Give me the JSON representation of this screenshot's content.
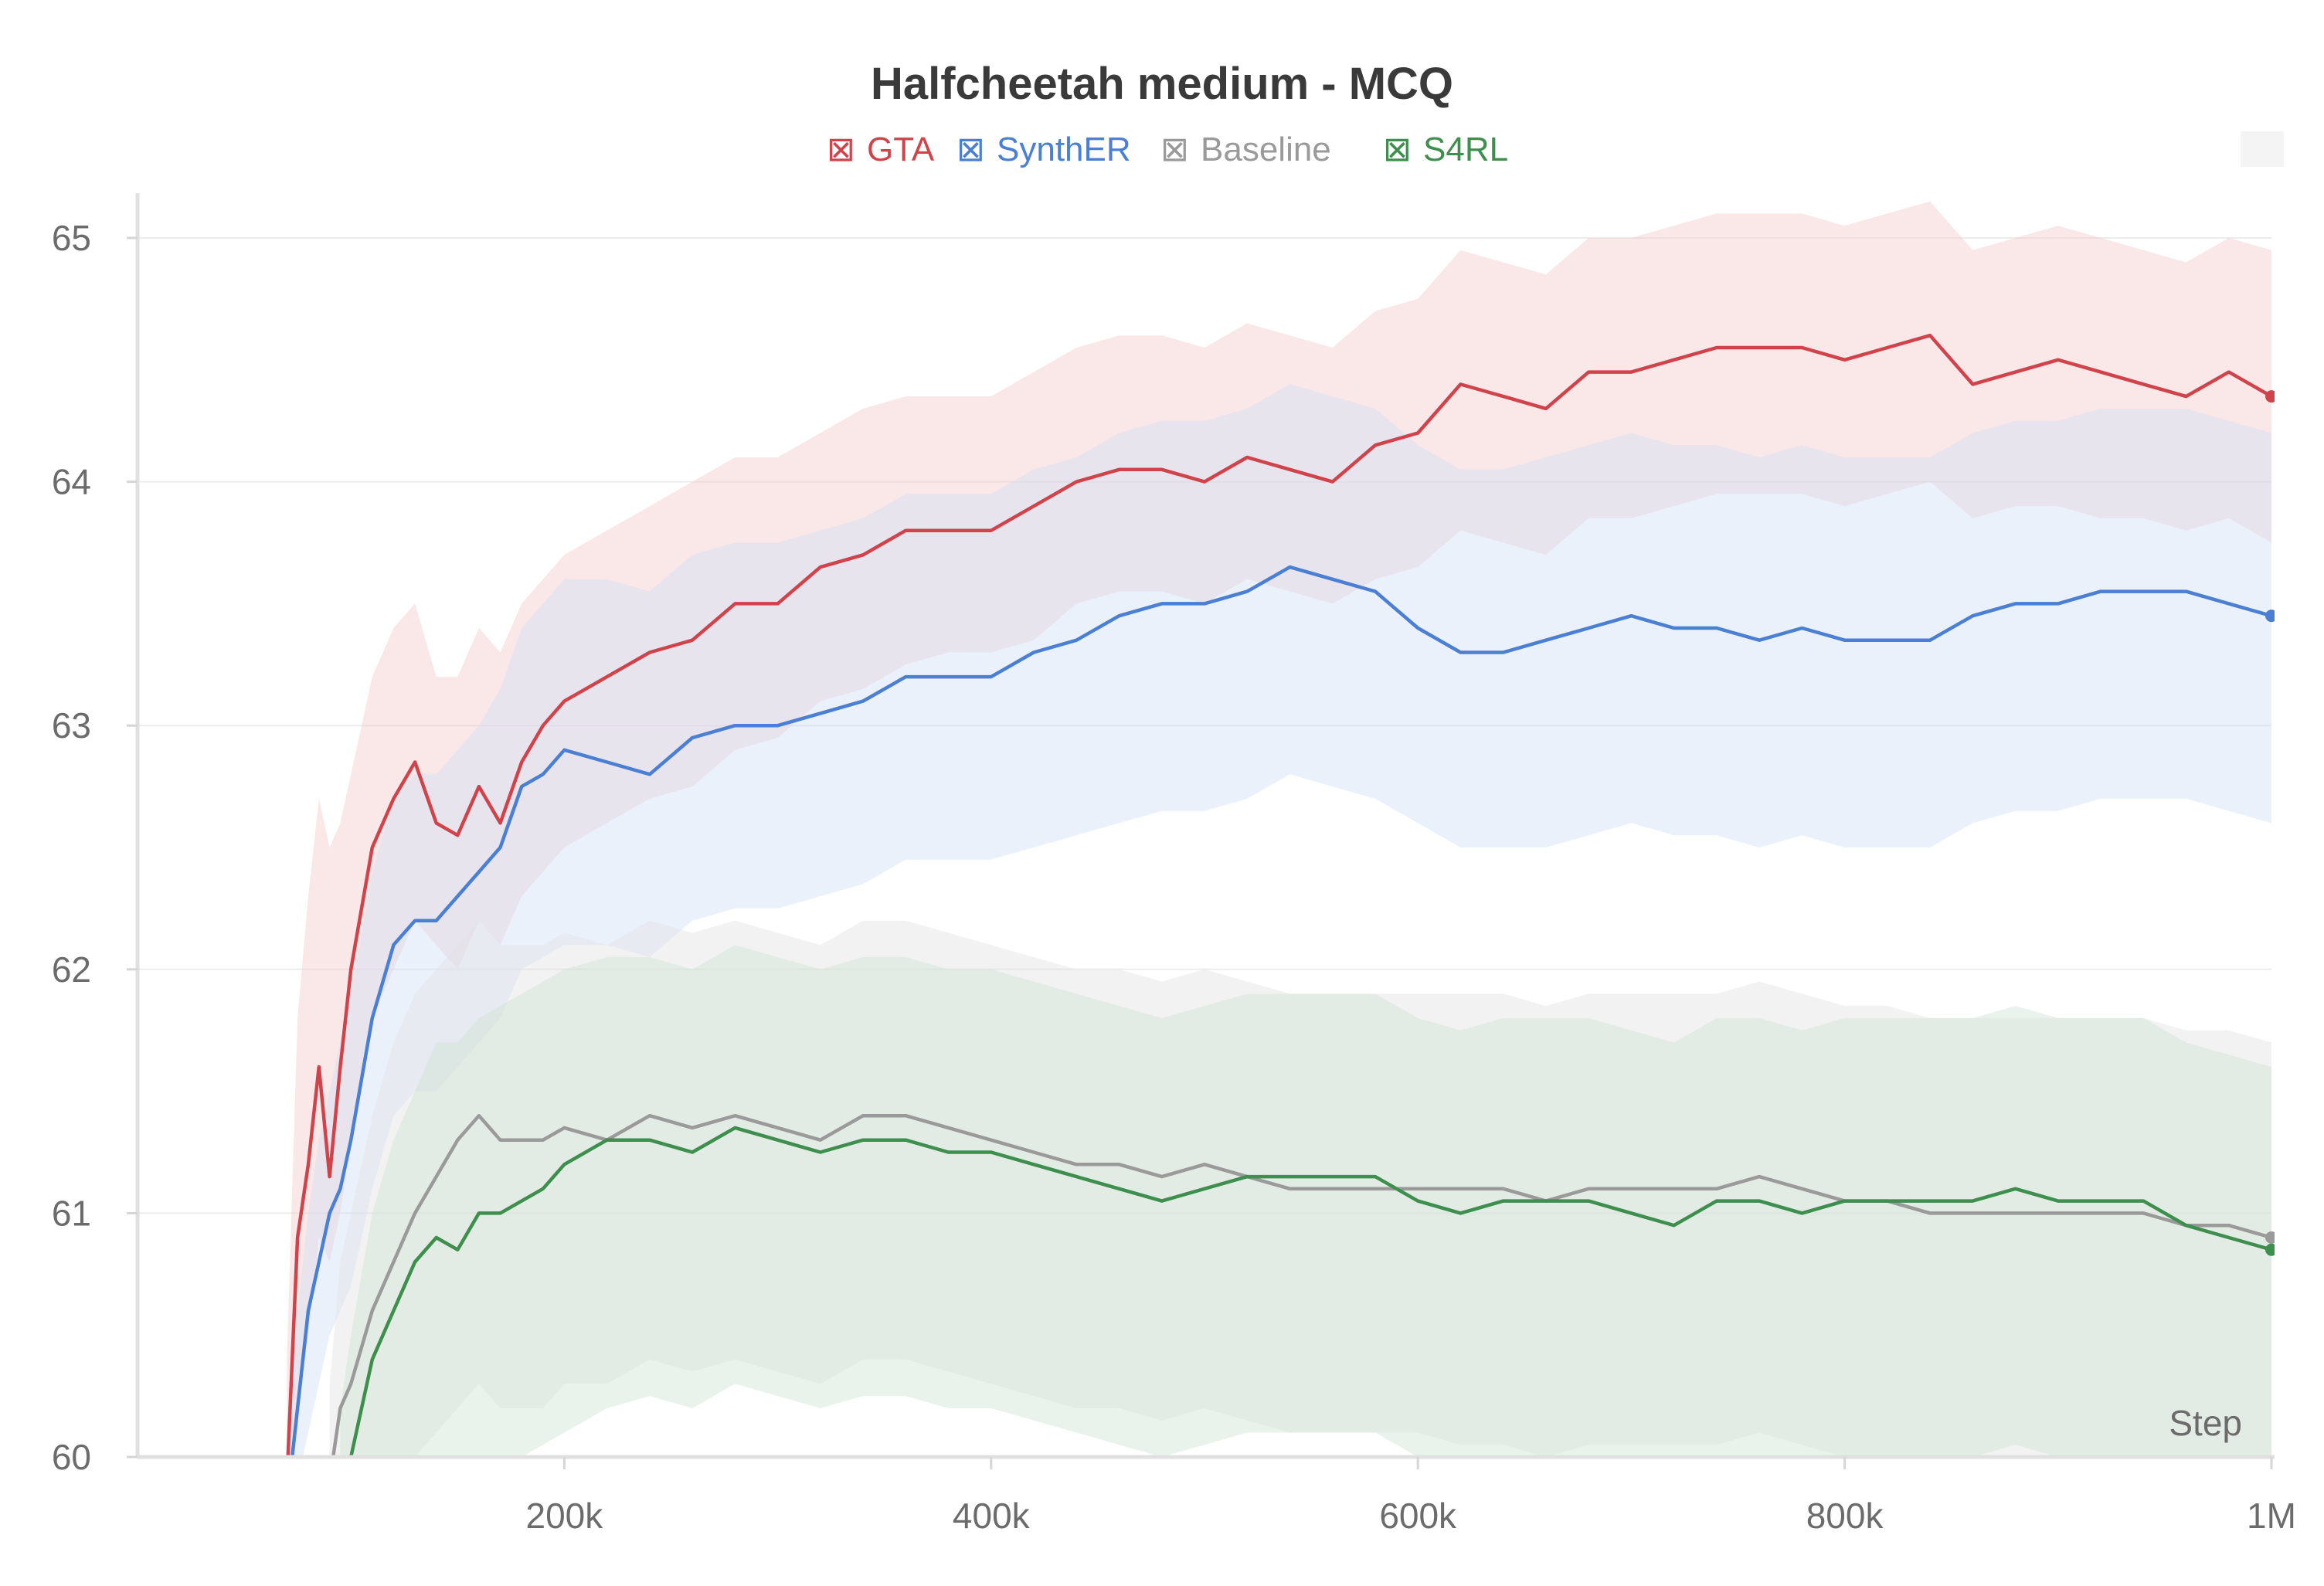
{
  "chart_data": {
    "type": "line",
    "title": "Halfcheetah medium - MCQ",
    "xlabel": "Step",
    "ylabel": "",
    "xlim": [
      0,
      1000000
    ],
    "ylim": [
      60,
      65.2
    ],
    "xticks": [
      200000,
      400000,
      600000,
      800000,
      1000000
    ],
    "xtick_labels": [
      "200k",
      "400k",
      "600k",
      "800k",
      "1M"
    ],
    "yticks": [
      60,
      61,
      62,
      63,
      64,
      65
    ],
    "ytick_labels": [
      "60",
      "61",
      "62",
      "63",
      "64",
      "65"
    ],
    "grid": true,
    "legend_position": "top-center",
    "legend_marker": "⊠",
    "series": [
      {
        "name": "GTA",
        "color": "#d1434b",
        "band_color": "#f3c9cc",
        "x": [
          70000,
          75000,
          80000,
          85000,
          90000,
          95000,
          100000,
          110000,
          120000,
          130000,
          140000,
          150000,
          160000,
          170000,
          180000,
          190000,
          200000,
          220000,
          240000,
          260000,
          280000,
          300000,
          320000,
          340000,
          360000,
          380000,
          400000,
          420000,
          440000,
          460000,
          480000,
          500000,
          520000,
          540000,
          560000,
          580000,
          600000,
          620000,
          640000,
          660000,
          680000,
          700000,
          720000,
          740000,
          760000,
          780000,
          800000,
          820000,
          840000,
          860000,
          880000,
          900000,
          920000,
          940000,
          960000,
          980000,
          1000000
        ],
        "y": [
          59.9,
          60.9,
          61.2,
          61.6,
          61.15,
          61.6,
          62.0,
          62.5,
          62.7,
          62.85,
          62.6,
          62.55,
          62.75,
          62.6,
          62.85,
          63.0,
          63.1,
          63.2,
          63.3,
          63.35,
          63.5,
          63.5,
          63.65,
          63.7,
          63.8,
          63.8,
          63.8,
          63.9,
          64.0,
          64.05,
          64.05,
          64.0,
          64.1,
          64.05,
          64.0,
          64.15,
          64.2,
          64.4,
          64.35,
          64.3,
          64.45,
          64.45,
          64.5,
          64.55,
          64.55,
          64.55,
          64.5,
          64.55,
          64.6,
          64.4,
          64.45,
          64.5,
          64.45,
          64.4,
          64.35,
          64.45,
          64.35
        ],
        "y_lower": [
          59.6,
          60.2,
          60.5,
          60.9,
          60.8,
          61.0,
          61.3,
          61.8,
          62.0,
          62.2,
          62.1,
          62.0,
          62.2,
          62.1,
          62.3,
          62.4,
          62.5,
          62.6,
          62.7,
          62.75,
          62.9,
          62.95,
          63.1,
          63.15,
          63.25,
          63.3,
          63.3,
          63.35,
          63.5,
          63.55,
          63.55,
          63.5,
          63.6,
          63.55,
          63.5,
          63.6,
          63.65,
          63.8,
          63.75,
          63.7,
          63.85,
          63.85,
          63.9,
          63.95,
          63.95,
          63.95,
          63.9,
          63.95,
          64.0,
          63.85,
          63.9,
          63.9,
          63.85,
          63.85,
          63.8,
          63.85,
          63.75
        ],
        "y_upper": [
          60.4,
          61.8,
          62.3,
          62.7,
          62.5,
          62.6,
          62.8,
          63.2,
          63.4,
          63.5,
          63.2,
          63.2,
          63.4,
          63.3,
          63.5,
          63.6,
          63.7,
          63.8,
          63.9,
          64.0,
          64.1,
          64.1,
          64.2,
          64.3,
          64.35,
          64.35,
          64.35,
          64.45,
          64.55,
          64.6,
          64.6,
          64.55,
          64.65,
          64.6,
          64.55,
          64.7,
          64.75,
          64.95,
          64.9,
          64.85,
          65.0,
          65.0,
          65.05,
          65.1,
          65.1,
          65.1,
          65.05,
          65.1,
          65.15,
          64.95,
          65.0,
          65.05,
          65.0,
          64.95,
          64.9,
          65.0,
          64.95
        ]
      },
      {
        "name": "SynthER",
        "color": "#4a7fd4",
        "band_color": "#d3e1f7",
        "x": [
          70000,
          75000,
          80000,
          85000,
          90000,
          95000,
          100000,
          110000,
          120000,
          130000,
          140000,
          150000,
          160000,
          170000,
          180000,
          190000,
          200000,
          220000,
          240000,
          260000,
          280000,
          300000,
          320000,
          340000,
          360000,
          380000,
          400000,
          420000,
          440000,
          460000,
          480000,
          500000,
          520000,
          540000,
          560000,
          580000,
          600000,
          620000,
          640000,
          660000,
          680000,
          700000,
          720000,
          740000,
          760000,
          780000,
          800000,
          820000,
          840000,
          860000,
          880000,
          900000,
          920000,
          940000,
          960000,
          980000,
          1000000
        ],
        "y": [
          59.8,
          60.2,
          60.6,
          60.8,
          61.0,
          61.1,
          61.3,
          61.8,
          62.1,
          62.2,
          62.2,
          62.3,
          62.4,
          62.5,
          62.75,
          62.8,
          62.9,
          62.85,
          62.8,
          62.95,
          63.0,
          63.0,
          63.05,
          63.1,
          63.2,
          63.2,
          63.2,
          63.3,
          63.35,
          63.45,
          63.5,
          63.5,
          63.55,
          63.65,
          63.6,
          63.55,
          63.4,
          63.3,
          63.3,
          63.35,
          63.4,
          63.45,
          63.4,
          63.4,
          63.35,
          63.4,
          63.35,
          63.35,
          63.35,
          63.45,
          63.5,
          63.5,
          63.55,
          63.55,
          63.55,
          63.5,
          63.45
        ],
        "y_lower": [
          59.5,
          59.9,
          60.1,
          60.3,
          60.5,
          60.6,
          60.7,
          61.1,
          61.4,
          61.5,
          61.5,
          61.6,
          61.7,
          61.8,
          62.0,
          62.05,
          62.1,
          62.1,
          62.05,
          62.2,
          62.25,
          62.25,
          62.3,
          62.35,
          62.45,
          62.45,
          62.45,
          62.5,
          62.55,
          62.6,
          62.65,
          62.65,
          62.7,
          62.8,
          62.75,
          62.7,
          62.6,
          62.5,
          62.5,
          62.5,
          62.55,
          62.6,
          62.55,
          62.55,
          62.5,
          62.55,
          62.5,
          62.5,
          62.5,
          62.6,
          62.65,
          62.65,
          62.7,
          62.7,
          62.7,
          62.65,
          62.6
        ],
        "y_upper": [
          60.1,
          60.6,
          61.0,
          61.3,
          61.5,
          61.7,
          61.9,
          62.4,
          62.7,
          62.8,
          62.8,
          62.9,
          63.0,
          63.15,
          63.4,
          63.5,
          63.6,
          63.6,
          63.55,
          63.7,
          63.75,
          63.75,
          63.8,
          63.85,
          63.95,
          63.95,
          63.95,
          64.05,
          64.1,
          64.2,
          64.25,
          64.25,
          64.3,
          64.4,
          64.35,
          64.3,
          64.15,
          64.05,
          64.05,
          64.1,
          64.15,
          64.2,
          64.15,
          64.15,
          64.1,
          64.15,
          64.1,
          64.1,
          64.1,
          64.2,
          64.25,
          64.25,
          64.3,
          64.3,
          64.3,
          64.25,
          64.2
        ]
      },
      {
        "name": "Baseline",
        "color": "#9a9a9a",
        "band_color": "#e2e2e2",
        "x": [
          90000,
          95000,
          100000,
          110000,
          120000,
          130000,
          140000,
          150000,
          160000,
          170000,
          180000,
          190000,
          200000,
          220000,
          240000,
          260000,
          280000,
          300000,
          320000,
          340000,
          360000,
          380000,
          400000,
          420000,
          440000,
          460000,
          480000,
          500000,
          520000,
          540000,
          560000,
          580000,
          600000,
          620000,
          640000,
          660000,
          680000,
          700000,
          720000,
          740000,
          760000,
          780000,
          800000,
          820000,
          840000,
          860000,
          880000,
          900000,
          920000,
          940000,
          960000,
          980000,
          1000000
        ],
        "y": [
          59.9,
          60.2,
          60.3,
          60.6,
          60.8,
          61.0,
          61.15,
          61.3,
          61.4,
          61.3,
          61.3,
          61.3,
          61.35,
          61.3,
          61.4,
          61.35,
          61.4,
          61.35,
          61.3,
          61.4,
          61.4,
          61.35,
          61.3,
          61.25,
          61.2,
          61.2,
          61.15,
          61.2,
          61.15,
          61.1,
          61.1,
          61.1,
          61.1,
          61.1,
          61.1,
          61.05,
          61.1,
          61.1,
          61.1,
          61.1,
          61.15,
          61.1,
          61.05,
          61.05,
          61.0,
          61.0,
          61.0,
          61.0,
          61.0,
          61.0,
          60.95,
          60.95,
          60.9
        ],
        "y_lower": [
          59.5,
          59.6,
          59.6,
          59.8,
          59.9,
          60.0,
          60.1,
          60.2,
          60.3,
          60.2,
          60.2,
          60.2,
          60.3,
          60.3,
          60.4,
          60.35,
          60.4,
          60.35,
          60.3,
          60.4,
          60.4,
          60.35,
          60.3,
          60.25,
          60.2,
          60.2,
          60.15,
          60.2,
          60.15,
          60.1,
          60.1,
          60.1,
          60.1,
          60.05,
          60.05,
          60.0,
          60.05,
          60.05,
          60.05,
          60.05,
          60.1,
          60.05,
          60.0,
          60.0,
          59.95,
          59.95,
          59.95,
          59.95,
          59.95,
          59.95,
          59.9,
          59.9,
          59.85
        ],
        "y_upper": [
          60.3,
          60.8,
          61.0,
          61.4,
          61.7,
          61.9,
          62.0,
          62.1,
          62.2,
          62.1,
          62.1,
          62.1,
          62.15,
          62.1,
          62.2,
          62.15,
          62.2,
          62.15,
          62.1,
          62.2,
          62.2,
          62.15,
          62.1,
          62.05,
          62.0,
          62.0,
          61.95,
          62.0,
          61.95,
          61.9,
          61.9,
          61.9,
          61.9,
          61.9,
          61.9,
          61.85,
          61.9,
          61.9,
          61.9,
          61.9,
          61.95,
          61.9,
          61.85,
          61.85,
          61.8,
          61.8,
          61.8,
          61.8,
          61.8,
          61.8,
          61.75,
          61.75,
          61.7
        ]
      },
      {
        "name": "S4RL",
        "color": "#3e8e4e",
        "band_color": "#cfe5d4",
        "x": [
          95000,
          100000,
          110000,
          120000,
          130000,
          140000,
          150000,
          160000,
          170000,
          180000,
          190000,
          200000,
          220000,
          240000,
          260000,
          280000,
          300000,
          320000,
          340000,
          360000,
          380000,
          400000,
          420000,
          440000,
          460000,
          480000,
          500000,
          520000,
          540000,
          560000,
          580000,
          600000,
          620000,
          640000,
          660000,
          680000,
          700000,
          720000,
          740000,
          760000,
          780000,
          800000,
          820000,
          840000,
          860000,
          880000,
          900000,
          920000,
          940000,
          960000,
          980000,
          1000000
        ],
        "y": [
          59.8,
          60.0,
          60.4,
          60.6,
          60.8,
          60.9,
          60.85,
          61.0,
          61.0,
          61.05,
          61.1,
          61.2,
          61.3,
          61.3,
          61.25,
          61.35,
          61.3,
          61.25,
          61.3,
          61.3,
          61.25,
          61.25,
          61.2,
          61.15,
          61.1,
          61.05,
          61.1,
          61.15,
          61.15,
          61.15,
          61.15,
          61.05,
          61.0,
          61.05,
          61.05,
          61.05,
          61.0,
          60.95,
          61.05,
          61.05,
          61.0,
          61.05,
          61.05,
          61.05,
          61.05,
          61.1,
          61.05,
          61.05,
          61.05,
          60.95,
          60.9,
          60.85
        ],
        "y_lower": [
          59.4,
          59.5,
          59.6,
          59.7,
          59.8,
          59.85,
          59.85,
          59.95,
          59.95,
          60.0,
          60.05,
          60.1,
          60.2,
          60.25,
          60.2,
          60.3,
          60.25,
          60.2,
          60.25,
          60.25,
          60.2,
          60.2,
          60.15,
          60.1,
          60.05,
          60.0,
          60.05,
          60.1,
          60.1,
          60.1,
          60.1,
          60.0,
          59.95,
          60.0,
          60.0,
          60.0,
          59.95,
          59.9,
          60.0,
          60.0,
          59.95,
          60.0,
          60.0,
          60.0,
          60.0,
          60.05,
          60.0,
          60.0,
          60.0,
          59.9,
          59.85,
          59.8
        ],
        "y_upper": [
          60.2,
          60.5,
          61.0,
          61.3,
          61.5,
          61.7,
          61.7,
          61.8,
          61.85,
          61.9,
          61.95,
          62.0,
          62.05,
          62.05,
          62.0,
          62.1,
          62.05,
          62.0,
          62.05,
          62.05,
          62.0,
          62.0,
          61.95,
          61.9,
          61.85,
          61.8,
          61.85,
          61.9,
          61.9,
          61.9,
          61.9,
          61.8,
          61.75,
          61.8,
          61.8,
          61.8,
          61.75,
          61.7,
          61.8,
          61.8,
          61.75,
          61.8,
          61.8,
          61.8,
          61.8,
          61.85,
          61.8,
          61.8,
          61.8,
          61.7,
          61.65,
          61.6
        ]
      }
    ]
  }
}
